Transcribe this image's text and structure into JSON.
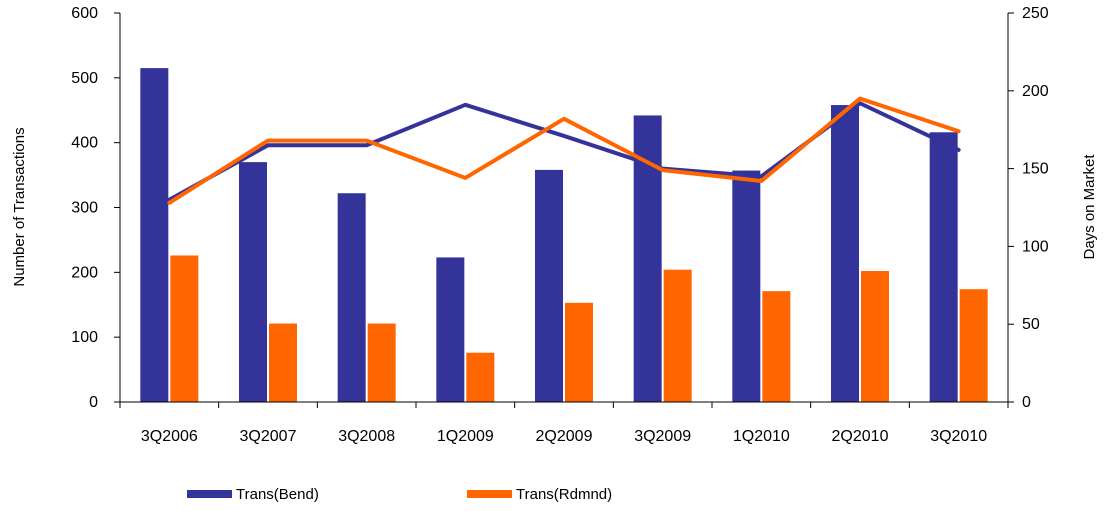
{
  "chart_data": {
    "type": "bar",
    "categories": [
      "3Q2006",
      "3Q2007",
      "3Q2008",
      "1Q2009",
      "2Q2009",
      "3Q2009",
      "1Q2010",
      "2Q2010",
      "3Q2010"
    ],
    "series": [
      {
        "name": "Trans(Bend)",
        "type": "bar",
        "axis": "left",
        "color": "#333399",
        "values": [
          515,
          370,
          322,
          223,
          358,
          442,
          357,
          458,
          416
        ]
      },
      {
        "name": "Trans(Rdmnd)",
        "type": "bar",
        "axis": "left",
        "color": "#FF6600",
        "values": [
          226,
          121,
          121,
          76,
          153,
          204,
          171,
          202,
          174
        ]
      },
      {
        "type": "line",
        "axis": "right",
        "color": "#333399",
        "values": [
          130,
          165,
          165,
          191,
          171,
          150,
          145,
          192,
          162
        ]
      },
      {
        "type": "line",
        "axis": "right",
        "color": "#FF6600",
        "values": [
          128,
          168,
          168,
          144,
          182,
          149,
          142,
          195,
          174
        ]
      }
    ],
    "ylabel": "Number of Transactions",
    "y2label": "Days on Market",
    "ylim": [
      0,
      600
    ],
    "y2lim": [
      0,
      250
    ],
    "yticks": [
      0,
      100,
      200,
      300,
      400,
      500,
      600
    ],
    "y2ticks": [
      0,
      50,
      100,
      150,
      200,
      250
    ],
    "grid": false,
    "legend_position": "bottom"
  }
}
